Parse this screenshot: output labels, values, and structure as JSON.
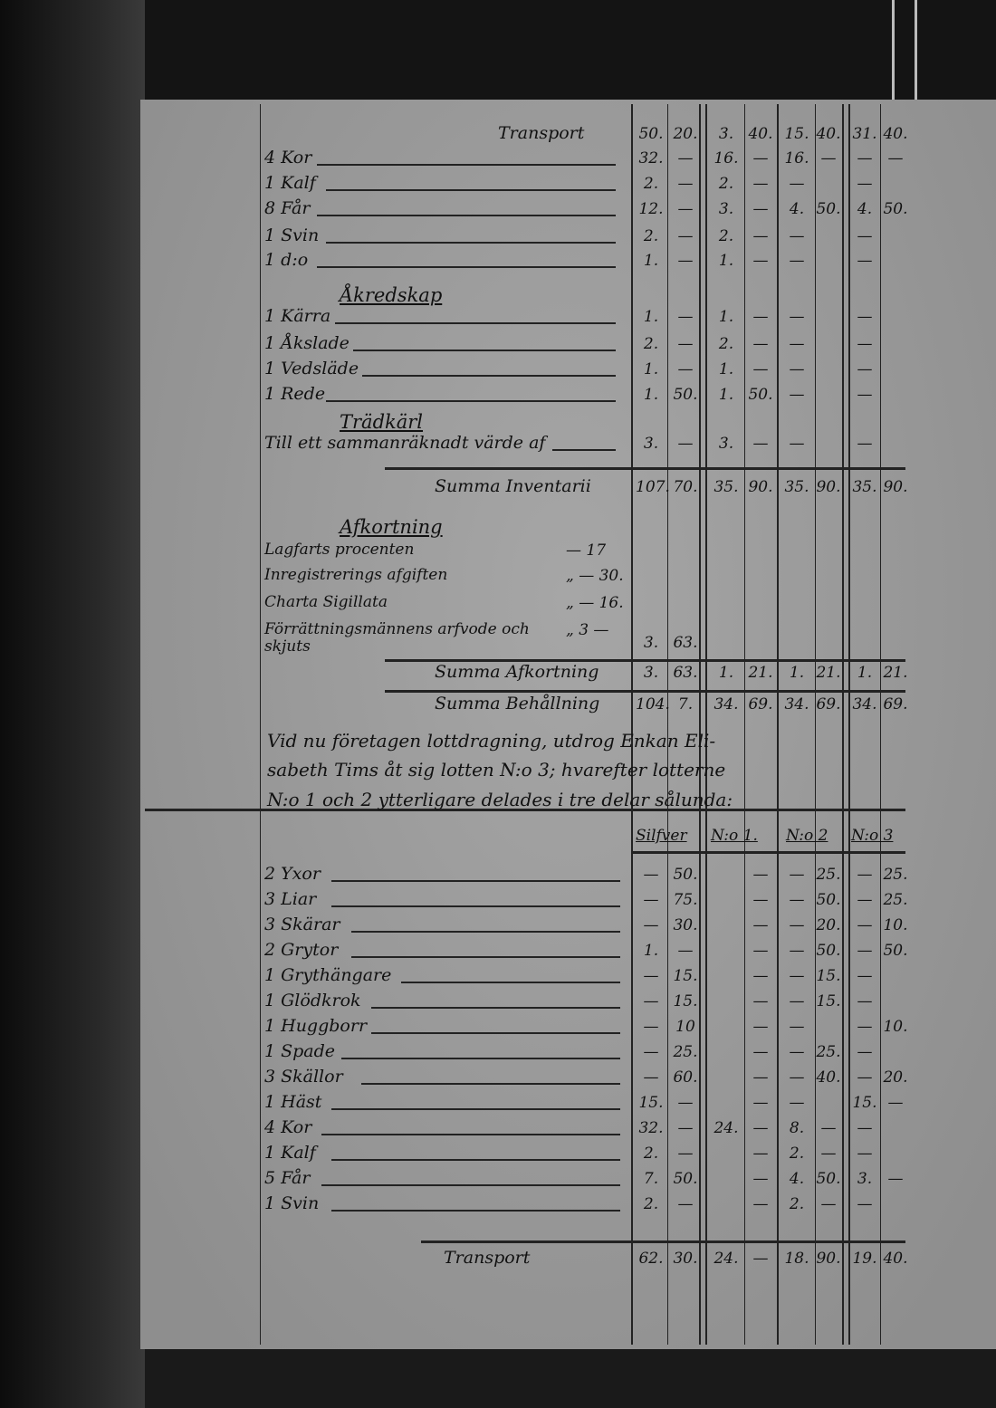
{
  "top_rows": [
    {
      "label": "",
      "right_label": "Transport",
      "cells": [
        "50.",
        "20.",
        "3.",
        "40.",
        "15.",
        "40.",
        "31.",
        "40."
      ]
    },
    {
      "label": "4 Kor",
      "cells": [
        "32.",
        "—",
        "16.",
        "—",
        "16.",
        "—",
        "—",
        "—"
      ]
    },
    {
      "label": "1 Kalf",
      "cells": [
        "2.",
        "—",
        "2.",
        "—",
        "—",
        "",
        "—",
        ""
      ]
    },
    {
      "label": "8 Får",
      "cells": [
        "12.",
        "—",
        "3.",
        "—",
        "4.",
        "50.",
        "4.",
        "50."
      ]
    },
    {
      "label": "1 Svin",
      "cells": [
        "2.",
        "—",
        "2.",
        "—",
        "—",
        "",
        "—",
        ""
      ]
    },
    {
      "label": "1 d:o",
      "cells": [
        "1.",
        "—",
        "1.",
        "—",
        "—",
        "",
        "—",
        ""
      ]
    },
    {
      "label": "Åkredskap",
      "heading": true,
      "cells": []
    },
    {
      "label": "1 Kärra",
      "cells": [
        "1.",
        "—",
        "1.",
        "—",
        "—",
        "",
        "—",
        ""
      ]
    },
    {
      "label": "1 Åkslade",
      "cells": [
        "2.",
        "—",
        "2.",
        "—",
        "—",
        "",
        "—",
        ""
      ]
    },
    {
      "label": "1 Vedsläde",
      "cells": [
        "1.",
        "—",
        "1.",
        "—",
        "—",
        "",
        "—",
        ""
      ]
    },
    {
      "label": "1 Rede",
      "cells": [
        "1.",
        "50.",
        "1.",
        "50.",
        "—",
        "",
        "—",
        ""
      ]
    },
    {
      "label": "Trädkärl",
      "heading": true,
      "cells": []
    },
    {
      "label": "Till ett sammanräknadt värde af",
      "cells": [
        "3.",
        "—",
        "3.",
        "—",
        "—",
        "",
        "—",
        ""
      ]
    },
    {
      "label": "",
      "right_label": "Summa Inventarii",
      "cells": [
        "107.",
        "70.",
        "35.",
        "90.",
        "35.",
        "90.",
        "35.",
        "90."
      ]
    }
  ],
  "afkortning": {
    "heading": "Afkortning",
    "items": [
      {
        "label": "Lagfarts procenten",
        "value": "— 17"
      },
      {
        "label": "Inregistrerings afgiften",
        "value": "„ — 30."
      },
      {
        "label": "Charta Sigillata",
        "value": "„ — 16."
      },
      {
        "label": "Förrättningsmännens arfvode och skjuts",
        "value": "„ 3 —",
        "cells": [
          "3.",
          "63."
        ]
      }
    ],
    "summa_afkortning": {
      "label": "Summa Afkortning",
      "cells": [
        "3.",
        "63.",
        "1.",
        "21.",
        "1.",
        "21.",
        "1.",
        "21."
      ]
    },
    "summa_behallning": {
      "label": "Summa Behållning",
      "cells": [
        "104.",
        "7.",
        "34.",
        "69.",
        "34.",
        "69.",
        "34.",
        "69."
      ]
    }
  },
  "paragraph": [
    "Vid nu företagen lottdragning, utdrog Enkan Eli-",
    "sabeth Tims åt sig lotten N:o 3; hvarefter lotterne",
    "N:o 1 och 2 ytterligare delades i tre delar sålunda:"
  ],
  "bottom_headers": [
    "Silfver",
    "N:o 1.",
    "N:o 2",
    "N:o 3"
  ],
  "bottom_rows": [
    {
      "label": "2 Yxor",
      "cells": [
        "—",
        "50.",
        "",
        "—",
        "—",
        "25.",
        "—",
        "25."
      ]
    },
    {
      "label": "3 Liar",
      "cells": [
        "—",
        "75.",
        "",
        "—",
        "—",
        "50.",
        "—",
        "25."
      ]
    },
    {
      "label": "3 Skärar",
      "cells": [
        "—",
        "30.",
        "",
        "—",
        "—",
        "20.",
        "—",
        "10."
      ]
    },
    {
      "label": "2 Grytor",
      "cells": [
        "1.",
        "—",
        "",
        "—",
        "—",
        "50.",
        "—",
        "50."
      ]
    },
    {
      "label": "1 Grythängare",
      "cells": [
        "—",
        "15.",
        "",
        "—",
        "—",
        "15.",
        "—",
        ""
      ]
    },
    {
      "label": "1 Glödkrok",
      "cells": [
        "—",
        "15.",
        "",
        "—",
        "—",
        "15.",
        "—",
        ""
      ]
    },
    {
      "label": "1 Huggborr",
      "cells": [
        "—",
        "10",
        "",
        "—",
        "—",
        "",
        "—",
        "10."
      ]
    },
    {
      "label": "1 Spade",
      "cells": [
        "—",
        "25.",
        "",
        "—",
        "—",
        "25.",
        "—",
        ""
      ]
    },
    {
      "label": "3 Skällor",
      "cells": [
        "—",
        "60.",
        "",
        "—",
        "—",
        "40.",
        "—",
        "20."
      ]
    },
    {
      "label": "1 Häst",
      "cells": [
        "15.",
        "—",
        "",
        "—",
        "—",
        "",
        "15.",
        "—"
      ]
    },
    {
      "label": "4 Kor",
      "cells": [
        "32.",
        "—",
        "24.",
        "—",
        "8.",
        "—",
        "—",
        ""
      ]
    },
    {
      "label": "1 Kalf",
      "cells": [
        "2.",
        "—",
        "",
        "—",
        "2.",
        "—",
        "—",
        ""
      ]
    },
    {
      "label": "5 Får",
      "cells": [
        "7.",
        "50.",
        "",
        "—",
        "4.",
        "50.",
        "3.",
        "—"
      ]
    },
    {
      "label": "1 Svin",
      "cells": [
        "2.",
        "—",
        "",
        "—",
        "2.",
        "—",
        "—",
        ""
      ]
    },
    {
      "label": "",
      "right_label": "Transport",
      "cells": [
        "62.",
        "30.",
        "24.",
        "—",
        "18.",
        "90.",
        "19.",
        "40."
      ]
    }
  ]
}
